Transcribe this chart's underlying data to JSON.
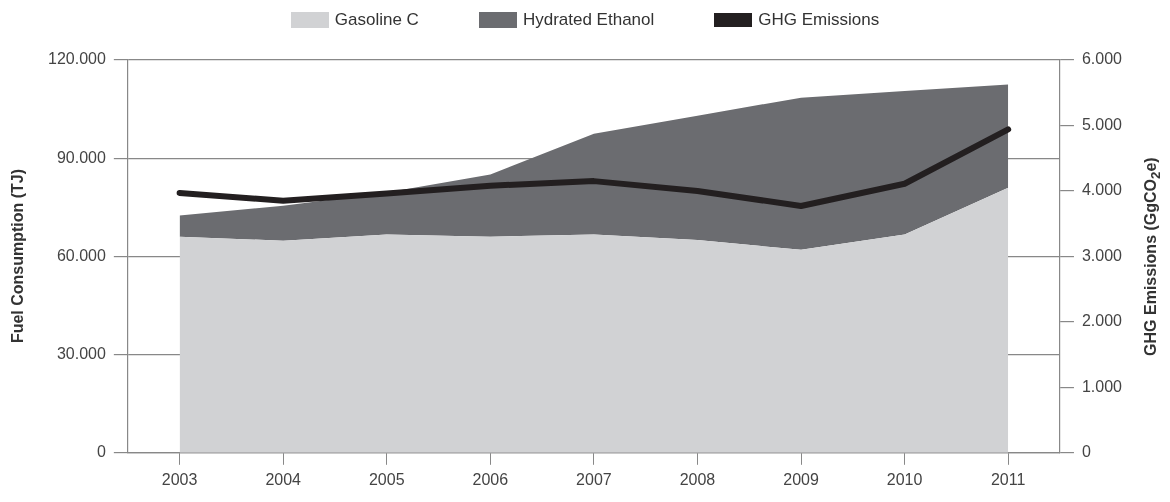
{
  "chart_data": {
    "type": "area",
    "stacked": true,
    "ylabel": "Fuel Consumption (TJ)",
    "y2label": "GHG Emissions (GgCO$_{2}$e)",
    "categories": [
      "2003",
      "2004",
      "2005",
      "2006",
      "2007",
      "2008",
      "2009",
      "2010",
      "2011"
    ],
    "series": [
      {
        "name": "Gasoline C",
        "color": "#d1d2d4",
        "values": [
          66000,
          64800,
          66700,
          66000,
          66700,
          65000,
          62000,
          66700,
          81000
        ]
      },
      {
        "name": "Hydrated Ethanol",
        "color": "#6b6c70",
        "values": [
          6500,
          10700,
          12800,
          19000,
          30800,
          38000,
          46500,
          43800,
          31500
        ]
      },
      {
        "name": "GHG Emissions",
        "type": "line",
        "axis": "y2",
        "color": "#231f20",
        "values": [
          3970,
          3850,
          3960,
          4080,
          4150,
          4000,
          3770,
          4110,
          4940
        ]
      }
    ],
    "ylim": [
      0,
      120000
    ],
    "yticks": [
      {
        "value": 0,
        "label": "0"
      },
      {
        "value": 30000,
        "label": "30.000"
      },
      {
        "value": 60000,
        "label": "60.000"
      },
      {
        "value": 90000,
        "label": "90.000"
      },
      {
        "value": 120000,
        "label": "120.000"
      }
    ],
    "y2lim": [
      0,
      6000
    ],
    "y2ticks": [
      {
        "value": 0,
        "label": "0"
      },
      {
        "value": 1000,
        "label": "1.000"
      },
      {
        "value": 2000,
        "label": "2.000"
      },
      {
        "value": 3000,
        "label": "3.000"
      },
      {
        "value": 4000,
        "label": "4.000"
      },
      {
        "value": 5000,
        "label": "5.000"
      },
      {
        "value": 6000,
        "label": "6.000"
      }
    ],
    "grid": "y",
    "legend": "top",
    "marker": "none"
  }
}
